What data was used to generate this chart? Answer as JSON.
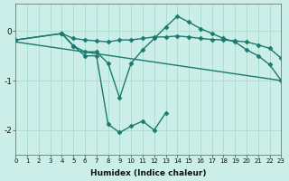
{
  "xlabel": "Humidex (Indice chaleur)",
  "ylabel": "",
  "bg_color": "#cceee8",
  "line_color": "#1a7a6e",
  "grid_color": "#aaddcc",
  "xlim": [
    0,
    23
  ],
  "ylim": [
    -2.5,
    0.55
  ],
  "yticks": [
    0,
    -1,
    -2
  ],
  "xticks": [
    0,
    1,
    2,
    3,
    4,
    5,
    6,
    7,
    8,
    9,
    10,
    11,
    12,
    13,
    14,
    15,
    16,
    17,
    18,
    19,
    20,
    21,
    22,
    23
  ],
  "series": [
    {
      "x": [
        0,
        4,
        5,
        6,
        7,
        8,
        9,
        10,
        11,
        12,
        13,
        14,
        15,
        16,
        17,
        18,
        19,
        20,
        21,
        22,
        23
      ],
      "y": [
        -0.18,
        -0.05,
        -0.15,
        -0.18,
        -0.2,
        -0.22,
        -0.18,
        -0.18,
        -0.15,
        -0.12,
        -0.12,
        -0.1,
        -0.12,
        -0.15,
        -0.17,
        -0.18,
        -0.2,
        -0.22,
        -0.28,
        -0.35,
        -0.55
      ],
      "marker": "D",
      "markersize": 2.5,
      "linewidth": 1.0
    },
    {
      "x": [
        0,
        4,
        5,
        6,
        7,
        8,
        9,
        10,
        11,
        12,
        13,
        14,
        15,
        16,
        17,
        18,
        19,
        20,
        21,
        22,
        23
      ],
      "y": [
        -0.18,
        -0.05,
        -0.3,
        -0.42,
        -0.42,
        -0.65,
        -1.35,
        -0.65,
        -0.38,
        -0.15,
        0.08,
        0.3,
        0.18,
        0.05,
        -0.05,
        -0.15,
        -0.22,
        -0.38,
        -0.5,
        -0.68,
        -1.0
      ],
      "marker": "D",
      "markersize": 2.5,
      "linewidth": 1.0
    },
    {
      "x": [
        4,
        5,
        6,
        7,
        8,
        9,
        10,
        11,
        12,
        13
      ],
      "y": [
        -0.05,
        -0.3,
        -0.5,
        -0.5,
        -1.88,
        -2.05,
        -1.92,
        -1.82,
        -2.0,
        -1.65
      ],
      "marker": "D",
      "markersize": 2.5,
      "linewidth": 1.0
    },
    {
      "x": [
        0,
        23
      ],
      "y": [
        -0.22,
        -1.0
      ],
      "marker": null,
      "markersize": 0,
      "linewidth": 1.0
    }
  ]
}
